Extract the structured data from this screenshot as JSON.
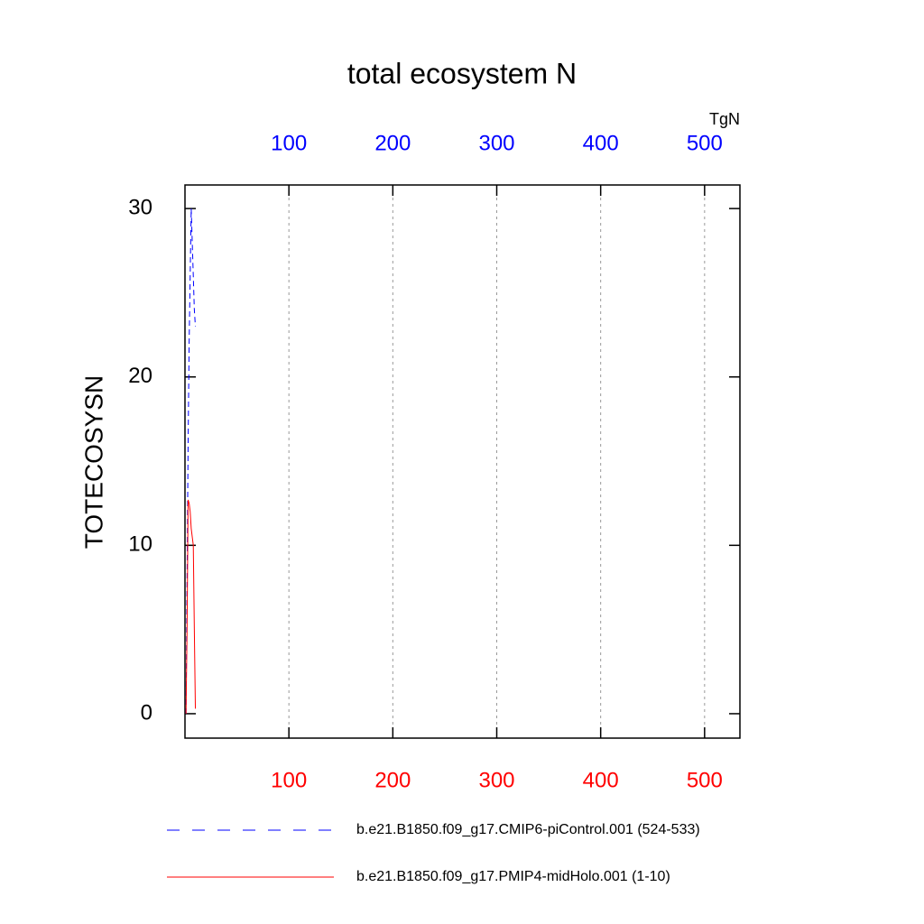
{
  "chart_data": {
    "type": "line",
    "title": "total ecosystem N",
    "units": "TgN",
    "ylabel": "TOTECOSYSN",
    "xlim": [
      0,
      534
    ],
    "xticks": [
      100,
      200,
      300,
      400,
      500
    ],
    "x2lim": [
      0,
      534
    ],
    "x2ticks": [
      100,
      200,
      300,
      400,
      500
    ],
    "x_color": "#ff0000",
    "x2_color": "#0000ff",
    "ylim": [
      -1.45,
      31.4
    ],
    "yticks": [
      0,
      10,
      20,
      30
    ],
    "grid": true,
    "series": [
      {
        "name": "b.e21.B1850.f09_g17.CMIP6-piControl.001 (524-533)",
        "color": "#0000ff",
        "dash": true,
        "axis": "x2",
        "x": [
          1,
          2,
          3,
          4,
          5,
          6,
          7,
          8,
          9,
          10
        ],
        "values": [
          0,
          8,
          16,
          22,
          26,
          30,
          28,
          26,
          24,
          23
        ]
      },
      {
        "name": "b.e21.B1850.f09_g17.PMIP4-midHolo.001 (1-10)",
        "color": "#ff0000",
        "dash": false,
        "axis": "x",
        "x": [
          1,
          2,
          3,
          4,
          5,
          6,
          7,
          8,
          9,
          10
        ],
        "values": [
          0,
          5,
          12.7,
          12.5,
          12,
          11,
          10.5,
          10,
          5,
          0.3
        ]
      }
    ]
  }
}
